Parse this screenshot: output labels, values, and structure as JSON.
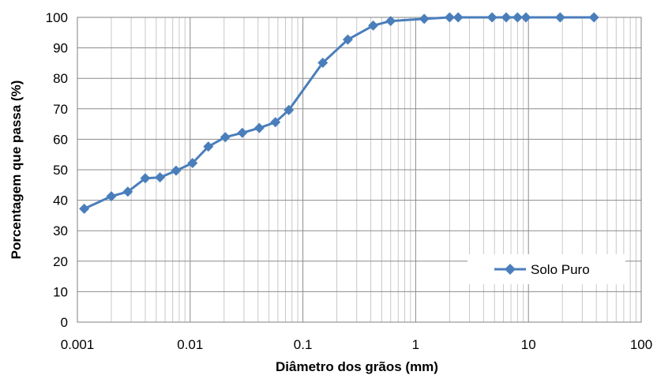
{
  "chart_data": {
    "type": "scatter",
    "xlabel": "Diâmetro dos grãos (mm)",
    "ylabel": "Porcentagem que passa (%)",
    "x_scale": "log",
    "xlim": [
      0.001,
      100
    ],
    "ylim": [
      0,
      100
    ],
    "x_ticks": [
      "0.001",
      "0.01",
      "0.1",
      "1",
      "10",
      "100"
    ],
    "y_ticks": [
      "0",
      "10",
      "20",
      "30",
      "40",
      "50",
      "60",
      "70",
      "80",
      "90",
      "100"
    ],
    "grid": true,
    "legend_position": "lower-right",
    "series": [
      {
        "name": "Solo Puro",
        "color": "#4a7ebb",
        "marker": "diamond",
        "x": [
          0.00115,
          0.002,
          0.0028,
          0.004,
          0.0054,
          0.0075,
          0.0105,
          0.0145,
          0.0205,
          0.029,
          0.041,
          0.057,
          0.075,
          0.15,
          0.25,
          0.42,
          0.6,
          1.19,
          2.0,
          2.38,
          4.76,
          6.35,
          8.0,
          9.5,
          19.1,
          38.1
        ],
        "y": [
          37.2,
          41.3,
          42.8,
          47.2,
          47.5,
          49.7,
          52.2,
          57.6,
          60.7,
          62.1,
          63.7,
          65.6,
          69.6,
          85.1,
          92.7,
          97.3,
          98.8,
          99.5,
          100,
          100,
          100,
          100,
          100,
          100,
          100,
          100
        ]
      }
    ]
  }
}
